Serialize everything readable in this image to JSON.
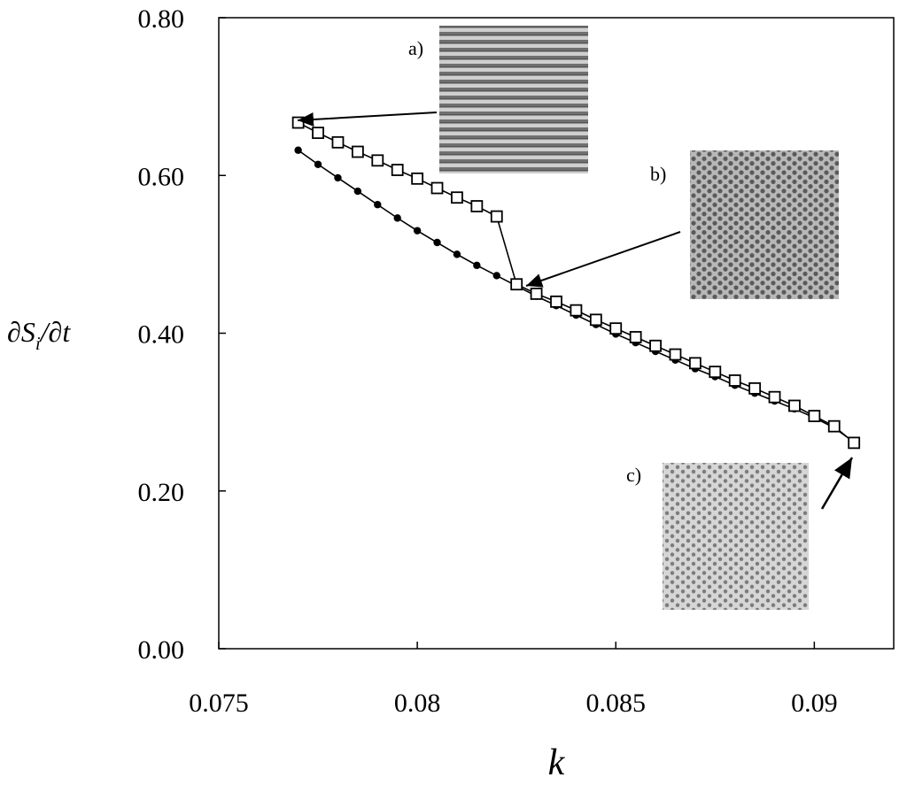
{
  "chart_data": {
    "type": "line",
    "title": "",
    "xlabel": "k",
    "ylabel": "∂S",
    "ylabel_sub": "i",
    "ylabel_tail": "/∂t",
    "xlim": [
      0.075,
      0.092
    ],
    "ylim": [
      0.0,
      0.8
    ],
    "xticks": [
      "0.075",
      "0.08",
      "0.085",
      "0.09"
    ],
    "xtick_values": [
      0.075,
      0.08,
      0.085,
      0.09
    ],
    "yticks": [
      "0.00",
      "0.20",
      "0.40",
      "0.60",
      "0.80"
    ],
    "ytick_values": [
      0.0,
      0.2,
      0.4,
      0.6,
      0.8
    ],
    "grid": false,
    "series": [
      {
        "marker": "open-square",
        "x": [
          0.077,
          0.0775,
          0.078,
          0.0785,
          0.079,
          0.0795,
          0.08,
          0.0805,
          0.081,
          0.0815,
          0.082,
          0.0825,
          0.083,
          0.0835,
          0.084,
          0.0845,
          0.085,
          0.0855,
          0.086,
          0.0865,
          0.087,
          0.0875,
          0.088,
          0.0885,
          0.089,
          0.0895,
          0.09,
          0.0905,
          0.091
        ],
        "y": [
          0.667,
          0.654,
          0.642,
          0.63,
          0.619,
          0.607,
          0.596,
          0.584,
          0.572,
          0.561,
          0.548,
          0.462,
          0.45,
          0.44,
          0.429,
          0.417,
          0.406,
          0.395,
          0.384,
          0.373,
          0.362,
          0.351,
          0.34,
          0.33,
          0.319,
          0.308,
          0.295,
          0.282,
          0.261
        ]
      },
      {
        "marker": "filled-circle",
        "x": [
          0.077,
          0.0775,
          0.078,
          0.0785,
          0.079,
          0.0795,
          0.08,
          0.0805,
          0.081,
          0.0815,
          0.082,
          0.0825,
          0.083,
          0.0835,
          0.084,
          0.0845,
          0.085,
          0.0855,
          0.086,
          0.0865,
          0.087,
          0.0875,
          0.088,
          0.0885,
          0.089,
          0.0895,
          0.09,
          0.0905,
          0.091
        ],
        "y": [
          0.632,
          0.614,
          0.597,
          0.58,
          0.563,
          0.546,
          0.53,
          0.515,
          0.5,
          0.486,
          0.473,
          0.46,
          0.447,
          0.435,
          0.423,
          0.411,
          0.399,
          0.388,
          0.377,
          0.366,
          0.355,
          0.345,
          0.334,
          0.324,
          0.314,
          0.304,
          0.293,
          0.28,
          0.262
        ]
      }
    ],
    "insets": [
      {
        "label": "a)",
        "pattern": "stripes",
        "points_to": [
          0.077,
          0.667
        ]
      },
      {
        "label": "b)",
        "pattern": "hexagonal-spots-dark",
        "points_to": [
          0.0825,
          0.462
        ]
      },
      {
        "label": "c)",
        "pattern": "hexagonal-spots-light",
        "points_to": [
          0.091,
          0.261
        ]
      }
    ]
  }
}
